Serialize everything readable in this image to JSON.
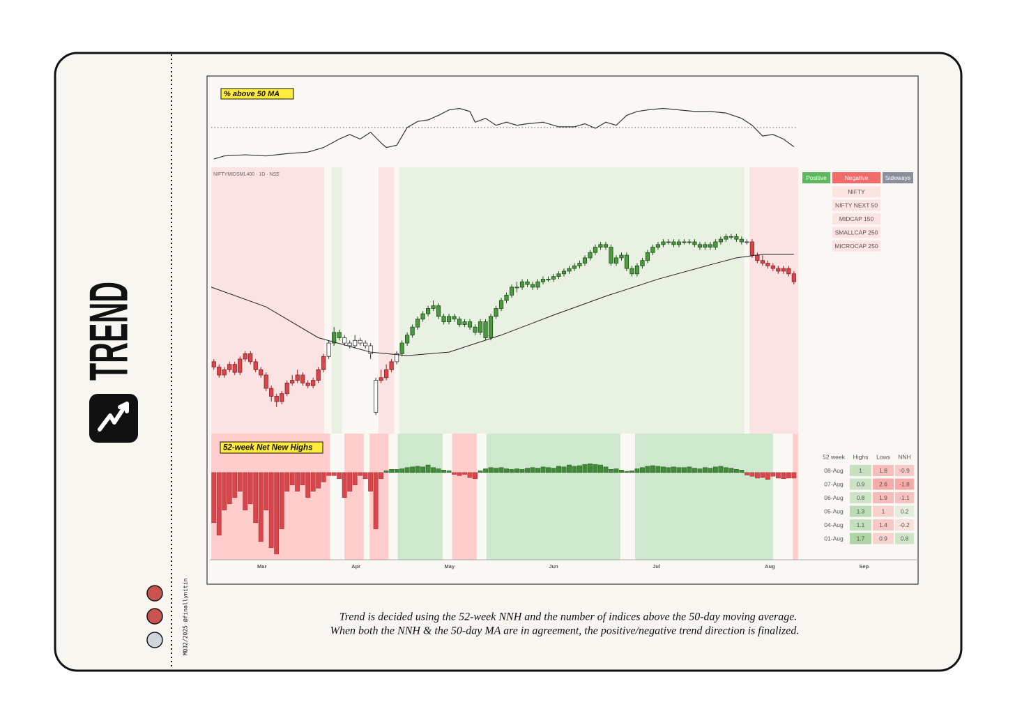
{
  "brand": {
    "title": "TREND",
    "credit": "MQ32/2025 @finallynitin"
  },
  "chart_data": [
    {
      "type": "line",
      "title": "% above 50 MA",
      "x": [
        0,
        2,
        6,
        10,
        14,
        18,
        21,
        24,
        26,
        28,
        30,
        32,
        33,
        35,
        37,
        39,
        41,
        43,
        45,
        47,
        49,
        50,
        52,
        54,
        56,
        58,
        60,
        63,
        66,
        69,
        71,
        73,
        75,
        77,
        79,
        81,
        83,
        86,
        89,
        92,
        95,
        98,
        101,
        103,
        105,
        107,
        109,
        111
      ],
      "values": [
        9,
        13,
        14.5,
        13,
        16,
        18,
        24,
        35,
        41,
        35,
        44,
        30,
        24,
        27,
        50,
        58,
        60,
        66,
        73,
        75,
        71,
        57,
        62,
        53,
        57,
        53,
        55,
        57,
        51,
        51,
        55,
        49,
        57,
        53,
        66,
        71,
        73,
        75,
        73,
        71,
        71,
        69,
        62,
        53,
        39,
        41,
        35,
        25
      ],
      "ylim": [
        0,
        100
      ],
      "xlim": [
        -0.5,
        134.5
      ],
      "reference": 50,
      "color": "#333333"
    },
    {
      "type": "candlestick",
      "title": "NIFTYMIDSML400 · 1D · NSE",
      "candles": [
        [
          27,
          28,
          24,
          25
        ],
        [
          25,
          26,
          21,
          22
        ],
        [
          22,
          25,
          21,
          24
        ],
        [
          24,
          27,
          23,
          26
        ],
        [
          26,
          27,
          22,
          23
        ],
        [
          23,
          29,
          22,
          28
        ],
        [
          28,
          31,
          27,
          30
        ],
        [
          30,
          31,
          26,
          27
        ],
        [
          27,
          28,
          23,
          24
        ],
        [
          24,
          25,
          21,
          22
        ],
        [
          22,
          23,
          16,
          17
        ],
        [
          17,
          18,
          12,
          14
        ],
        [
          14,
          15,
          10,
          12
        ],
        [
          12,
          16,
          11,
          15
        ],
        [
          15,
          20,
          14,
          19
        ],
        [
          19,
          22,
          18,
          20
        ],
        [
          20,
          24,
          19,
          22
        ],
        [
          22,
          23,
          18,
          19
        ],
        [
          19,
          20,
          17,
          18
        ],
        [
          18,
          21,
          17,
          20
        ],
        [
          20,
          25,
          19,
          24
        ],
        [
          24,
          30,
          23,
          29
        ],
        [
          29,
          35,
          28,
          34
        ],
        [
          34,
          40,
          33,
          38
        ],
        [
          38,
          39,
          35,
          36
        ],
        [
          36,
          37,
          33,
          34
        ],
        [
          34,
          35,
          32,
          33
        ],
        [
          33,
          37,
          32,
          35
        ],
        [
          35,
          36,
          33,
          34
        ],
        [
          34,
          35,
          32,
          33
        ],
        [
          33,
          34,
          28,
          30
        ],
        [
          8,
          21,
          7,
          20
        ],
        [
          20,
          24,
          19,
          21
        ],
        [
          21,
          26,
          20,
          24
        ],
        [
          24,
          28,
          23,
          27
        ],
        [
          27,
          31,
          26,
          30
        ],
        [
          30,
          35,
          29,
          34
        ],
        [
          34,
          38,
          33,
          37
        ],
        [
          37,
          41,
          36,
          40
        ],
        [
          40,
          44,
          39,
          43
        ],
        [
          43,
          46,
          42,
          45
        ],
        [
          45,
          48,
          44,
          47
        ],
        [
          47,
          50,
          46,
          48
        ],
        [
          48,
          49,
          43,
          44
        ],
        [
          44,
          45,
          41,
          42
        ],
        [
          42,
          45,
          41,
          44
        ],
        [
          44,
          45,
          42,
          43
        ],
        [
          43,
          44,
          40,
          41
        ],
        [
          41,
          43,
          40,
          42
        ],
        [
          42,
          43,
          39,
          40
        ],
        [
          40,
          41,
          37,
          38
        ],
        [
          38,
          43,
          37,
          42
        ],
        [
          42,
          43,
          35,
          36
        ],
        [
          36,
          45,
          35,
          44
        ],
        [
          44,
          48,
          43,
          47
        ],
        [
          47,
          51,
          46,
          50
        ],
        [
          50,
          53,
          49,
          52
        ],
        [
          52,
          56,
          51,
          55
        ],
        [
          55,
          57,
          53,
          55
        ],
        [
          55,
          58,
          54,
          57
        ],
        [
          57,
          58,
          55,
          56
        ],
        [
          56,
          57,
          54,
          55
        ],
        [
          55,
          58,
          54,
          57
        ],
        [
          57,
          59,
          56,
          58
        ],
        [
          58,
          59,
          57,
          58
        ],
        [
          58,
          60,
          57,
          59
        ],
        [
          59,
          61,
          58,
          60
        ],
        [
          60,
          62,
          59,
          61
        ],
        [
          61,
          63,
          60,
          62
        ],
        [
          62,
          64,
          61,
          63
        ],
        [
          63,
          65,
          62,
          64
        ],
        [
          64,
          67,
          63,
          66
        ],
        [
          66,
          69,
          65,
          68
        ],
        [
          68,
          71,
          67,
          70
        ],
        [
          70,
          72,
          69,
          71
        ],
        [
          71,
          72,
          69,
          70
        ],
        [
          70,
          71,
          63,
          64
        ],
        [
          64,
          67,
          63,
          66
        ],
        [
          66,
          68,
          65,
          67
        ],
        [
          67,
          68,
          61,
          62
        ],
        [
          62,
          63,
          59,
          60
        ],
        [
          60,
          64,
          59,
          63
        ],
        [
          63,
          66,
          62,
          65
        ],
        [
          65,
          69,
          64,
          68
        ],
        [
          68,
          71,
          67,
          70
        ],
        [
          70,
          72,
          69,
          71
        ],
        [
          71,
          73,
          70,
          72
        ],
        [
          72,
          73,
          71,
          72
        ],
        [
          72,
          73,
          70,
          71
        ],
        [
          71,
          73,
          70,
          72
        ],
        [
          72,
          73,
          71,
          72
        ],
        [
          72,
          73,
          71,
          72
        ],
        [
          72,
          73,
          70,
          71
        ],
        [
          71,
          72,
          69,
          70
        ],
        [
          70,
          72,
          69,
          71
        ],
        [
          71,
          72,
          69,
          70
        ],
        [
          70,
          73,
          69,
          72
        ],
        [
          72,
          74,
          71,
          73
        ],
        [
          73,
          75,
          72,
          74
        ],
        [
          74,
          75,
          73,
          74
        ],
        [
          74,
          75,
          72,
          73
        ],
        [
          73,
          74,
          71,
          72
        ],
        [
          72,
          73,
          71,
          72
        ],
        [
          72,
          73,
          66,
          67
        ],
        [
          67,
          68,
          64,
          65
        ],
        [
          65,
          67,
          63,
          64
        ],
        [
          64,
          65,
          62,
          63
        ],
        [
          63,
          64,
          61,
          62
        ],
        [
          62,
          63,
          60,
          61
        ],
        [
          61,
          63,
          60,
          62
        ],
        [
          62,
          63,
          59,
          60
        ],
        [
          60,
          61,
          56,
          57
        ]
      ],
      "ma": {
        "x": [
          -0.5,
          10,
          20,
          30,
          37,
          45,
          55,
          65,
          75,
          85,
          95,
          100,
          105,
          111
        ],
        "values": [
          55,
          47.6,
          36,
          30.6,
          29.3,
          30.6,
          37,
          44.5,
          51.6,
          58,
          63.4,
          66,
          67.3,
          67.3
        ]
      },
      "ylim": [
        0,
        100
      ],
      "xlim": [
        -0.5,
        134.5
      ],
      "regimes": [
        {
          "start": -0.5,
          "end": 21.1,
          "state": "Negative"
        },
        {
          "start": 21.1,
          "end": 22.5,
          "state": "Sideways"
        },
        {
          "start": 22.5,
          "end": 24.5,
          "state": "Positive"
        },
        {
          "start": 24.5,
          "end": 31.5,
          "state": "Sideways"
        },
        {
          "start": 31.5,
          "end": 34.5,
          "state": "Negative"
        },
        {
          "start": 34.5,
          "end": 35.5,
          "state": "Sideways"
        },
        {
          "start": 35.5,
          "end": 101.5,
          "state": "Positive"
        },
        {
          "start": 101.5,
          "end": 102.5,
          "state": "Sideways"
        },
        {
          "start": 102.5,
          "end": 111.8,
          "state": "Negative"
        }
      ],
      "region_colors": {
        "Positive": "#e8f1e2",
        "Negative": "#fbe3e3",
        "Sideways": "#faf8f4"
      },
      "candle_colors": {
        "Positive": "#4c9a3f",
        "Negative": "#d9454a",
        "Sideways": "#ffffff"
      },
      "outline_colors": {
        "Positive": "#1f4d1a",
        "Negative": "#8a1f22",
        "Sideways": "#333333"
      }
    },
    {
      "type": "bar",
      "title": "52-week Net New Highs",
      "values": [
        -8,
        -10,
        -6,
        -5,
        -4,
        -3,
        -6,
        -5,
        -8,
        -11,
        -6,
        -12,
        -13,
        -9,
        -3,
        -2,
        -3,
        -2,
        -4,
        -3,
        -2.5,
        -1.5,
        -0.5,
        -0.5,
        -1,
        -4,
        -3,
        -2,
        -0.5,
        -1,
        -3,
        -9,
        -1,
        0.3,
        0.5,
        0.5,
        0.6,
        0.8,
        0.9,
        1,
        0.9,
        1.2,
        0.8,
        0.6,
        0.4,
        0.3,
        -0.3,
        -0.5,
        -0.3,
        -0.8,
        -1,
        0.3,
        0.6,
        0.8,
        0.7,
        0.8,
        0.6,
        0.5,
        0.6,
        0.5,
        0.7,
        0.8,
        0.7,
        0.9,
        0.8,
        0.7,
        1,
        0.9,
        1.2,
        1,
        1.1,
        1.3,
        1.4,
        1.3,
        1.2,
        0.9,
        0.5,
        0.6,
        0.4,
        0.2,
        0.3,
        0.6,
        0.8,
        1,
        1.1,
        1,
        0.9,
        0.8,
        0.9,
        0.8,
        0.8,
        0.9,
        0.7,
        0.6,
        0.8,
        0.7,
        0.9,
        1,
        0.8,
        0.7,
        0.5,
        0.4,
        -0.4,
        -0.6,
        -0.9,
        -0.8,
        -1.1,
        -0.6,
        -0.9,
        -1,
        -0.9,
        -0.9
      ],
      "ylim": [
        -13.9,
        6.2
      ],
      "xlim": [
        -0.5,
        134.5
      ],
      "positive_color": "#3f8a36",
      "negative_color": "#d9454a",
      "regimes": [
        {
          "start": -0.5,
          "end": 22.2,
          "state": "Negative"
        },
        {
          "start": 22.2,
          "end": 25,
          "state": "Sideways"
        },
        {
          "start": 25,
          "end": 28.7,
          "state": "Negative"
        },
        {
          "start": 28.7,
          "end": 29.8,
          "state": "Sideways"
        },
        {
          "start": 29.8,
          "end": 33.4,
          "state": "Negative"
        },
        {
          "start": 33.4,
          "end": 35.2,
          "state": "Sideways"
        },
        {
          "start": 35.2,
          "end": 43.8,
          "state": "Positive"
        },
        {
          "start": 43.8,
          "end": 45.6,
          "state": "Sideways"
        },
        {
          "start": 45.6,
          "end": 50.3,
          "state": "Negative"
        },
        {
          "start": 50.3,
          "end": 52.2,
          "state": "Sideways"
        },
        {
          "start": 52.2,
          "end": 77.8,
          "state": "Positive"
        },
        {
          "start": 77.8,
          "end": 80.6,
          "state": "Sideways"
        },
        {
          "start": 80.6,
          "end": 107,
          "state": "Positive"
        },
        {
          "start": 107,
          "end": 110.8,
          "state": "Sideways"
        },
        {
          "start": 110.8,
          "end": 111.8,
          "state": "Negative"
        }
      ],
      "region_colors": {
        "Positive": "#cde8cc",
        "Negative": "#ffcccc",
        "Sideways": "#faf8f4"
      },
      "xticks": [
        {
          "value": 9.2,
          "label": "Mar"
        },
        {
          "value": 27.2,
          "label": "Apr"
        },
        {
          "value": 45.1,
          "label": "May"
        },
        {
          "value": 65,
          "label": "Jun"
        },
        {
          "value": 84.7,
          "label": "Jul"
        },
        {
          "value": 106.4,
          "label": "Aug"
        },
        {
          "value": 124.4,
          "label": "Sep"
        }
      ]
    }
  ],
  "trend_table": {
    "columns": [
      "Positive",
      "Negative",
      "Sideways"
    ],
    "column_colors": [
      "#5cb85c",
      "#f26b6b",
      "#8a8f9a"
    ],
    "cell_color": "#fbe4e2",
    "indices": [
      {
        "name": "NIFTY",
        "state": "Negative"
      },
      {
        "name": "NIFTY NEXT 50",
        "state": "Negative"
      },
      {
        "name": "MIDCAP 150",
        "state": "Negative"
      },
      {
        "name": "SMALLCAP 250",
        "state": "Negative"
      },
      {
        "name": "MICROCAP 250",
        "state": "Negative"
      }
    ]
  },
  "nnh_table": {
    "headers": [
      "52 week",
      "Highs",
      "Lows",
      "NNH"
    ],
    "rows": [
      [
        "08-Aug",
        1,
        1.8,
        -0.9
      ],
      [
        "07-Aug",
        0.9,
        2.6,
        -1.8
      ],
      [
        "06-Aug",
        0.8,
        1.9,
        -1.1
      ],
      [
        "05-Aug",
        1.3,
        1,
        0.2
      ],
      [
        "04-Aug",
        1.1,
        1.4,
        -0.2
      ],
      [
        "01-Aug",
        1.7,
        0.9,
        0.8
      ]
    ]
  },
  "caption": [
    "Trend is decided using the 52-week NNH and the number of indices above the 50-day moving average.",
    "When both the NNH & the 50-day MA are in agreement, the positive/negative trend direction is finalized."
  ]
}
